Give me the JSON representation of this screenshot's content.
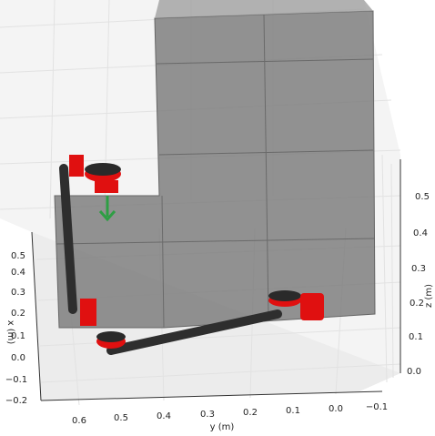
{
  "axes": {
    "x": {
      "label": "x (m)",
      "ticks": [
        "0.5",
        "0.4",
        "0.3",
        "0.2",
        "0.1",
        "0.0",
        "−0.1",
        "−0.2"
      ]
    },
    "y": {
      "label": "y (m)",
      "ticks": [
        "0.6",
        "0.5",
        "0.4",
        "0.3",
        "0.2",
        "0.1",
        "0.0",
        "−0.1"
      ]
    },
    "z": {
      "label": "z (m)",
      "ticks": [
        "0.0",
        "0.1",
        "0.2",
        "0.3",
        "0.4",
        "0.5"
      ]
    }
  }
}
